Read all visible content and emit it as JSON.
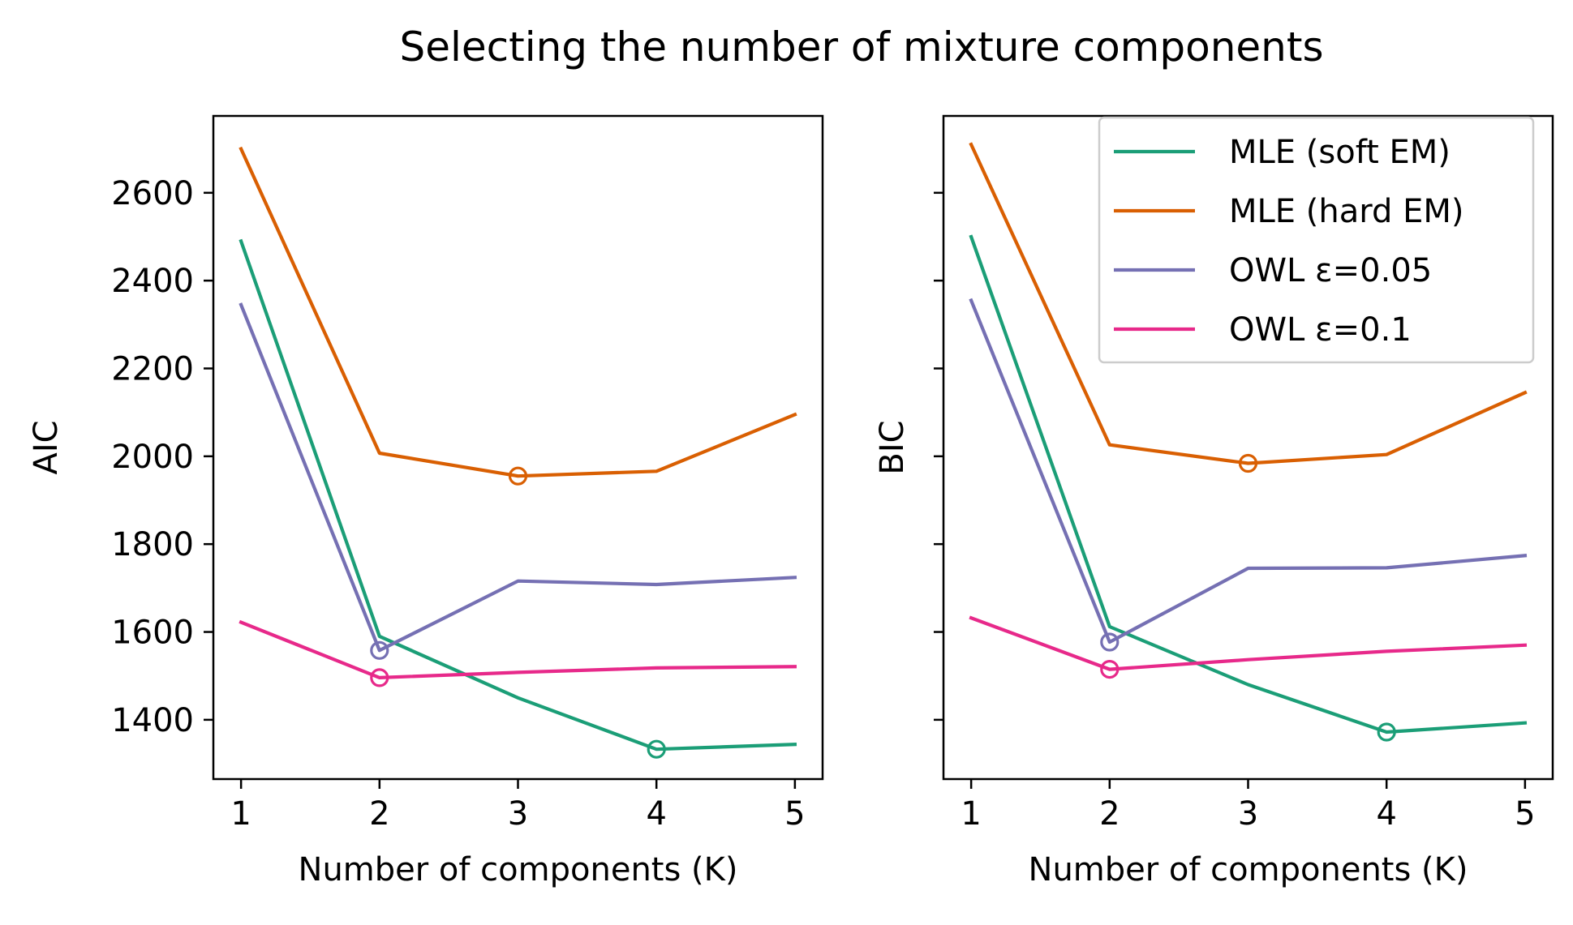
{
  "figure": {
    "title": "Selecting the number of mixture components"
  },
  "chart_data": [
    {
      "type": "line",
      "xlabel": "Number of components (K)",
      "ylabel": "AIC",
      "x": [
        1,
        2,
        3,
        4,
        5
      ],
      "xlim": [
        0.8,
        5.2
      ],
      "ylim": [
        1265,
        2775
      ],
      "xticks": [
        "1",
        "2",
        "3",
        "4",
        "5"
      ],
      "yticks": [
        1400,
        1600,
        1800,
        2000,
        2200,
        2400,
        2600
      ],
      "series": [
        {
          "name": "MLE (soft EM)",
          "color": "#1b9e77",
          "values": [
            2490,
            1590,
            1450,
            1333,
            1344
          ],
          "min_k": 4
        },
        {
          "name": "MLE (hard EM)",
          "color": "#d95f02",
          "values": [
            2700,
            2007,
            1955,
            1966,
            2095
          ],
          "min_k": 3
        },
        {
          "name": "OWL ε=0.05",
          "color": "#7570b3",
          "values": [
            2345,
            1558,
            1716,
            1708,
            1724
          ],
          "min_k": 2
        },
        {
          "name": "OWL ε=0.1",
          "color": "#e7298a",
          "values": [
            1622,
            1496,
            1508,
            1518,
            1521
          ],
          "min_k": 2
        }
      ]
    },
    {
      "type": "line",
      "xlabel": "Number of components (K)",
      "ylabel": "BIC",
      "x": [
        1,
        2,
        3,
        4,
        5
      ],
      "xlim": [
        0.8,
        5.2
      ],
      "ylim": [
        1265,
        2775
      ],
      "xticks": [
        "1",
        "2",
        "3",
        "4",
        "5"
      ],
      "yticks": [
        1400,
        1600,
        1800,
        2000,
        2200,
        2400,
        2600
      ],
      "series": [
        {
          "name": "MLE (soft EM)",
          "color": "#1b9e77",
          "values": [
            2500,
            1612,
            1480,
            1372,
            1393
          ],
          "min_k": 4
        },
        {
          "name": "MLE (hard EM)",
          "color": "#d95f02",
          "values": [
            2710,
            2026,
            1984,
            2004,
            2145
          ],
          "min_k": 3
        },
        {
          "name": "OWL ε=0.05",
          "color": "#7570b3",
          "values": [
            2355,
            1577,
            1745,
            1746,
            1774
          ],
          "min_k": 2
        },
        {
          "name": "OWL ε=0.1",
          "color": "#e7298a",
          "values": [
            1632,
            1515,
            1537,
            1556,
            1570
          ],
          "min_k": 2
        }
      ]
    }
  ],
  "legend": {
    "location": "upper right of second panel",
    "entries": [
      "MLE (soft EM)",
      "MLE (hard EM)",
      "OWL ε=0.05",
      "OWL ε=0.1"
    ]
  }
}
